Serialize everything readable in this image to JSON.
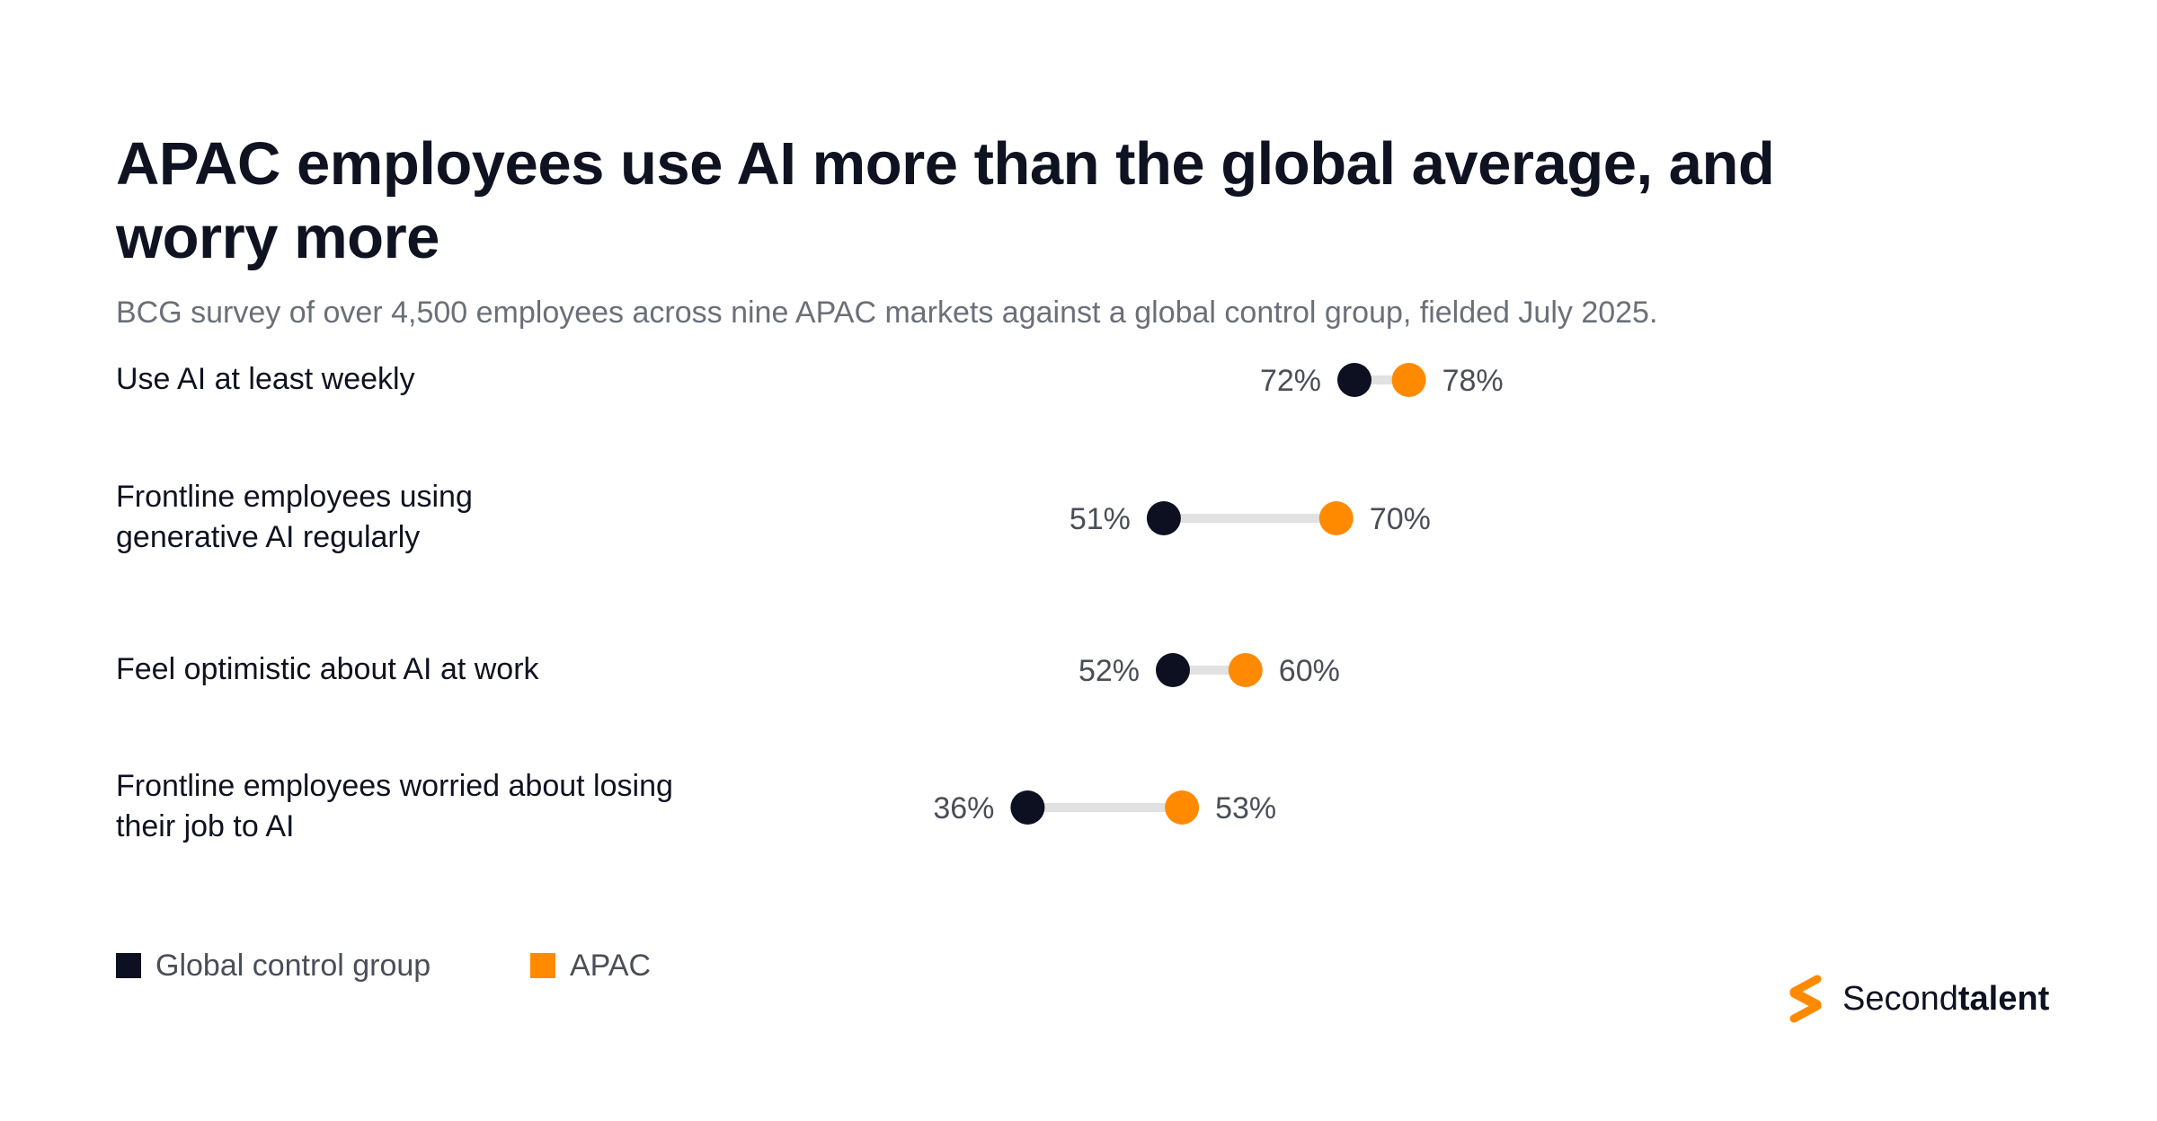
{
  "title": "APAC employees use AI more than the global average, and worry more",
  "subtitle": "BCG survey of over 4,500 employees across nine APAC markets against a global control group, fielded July 2025.",
  "colors": {
    "global": "#0d1020",
    "apac": "#ff8a00",
    "connector": "#e1e1e1",
    "value_label": "#4a4e57"
  },
  "chart_data": {
    "type": "dumbbell",
    "unit": "%",
    "categories": [
      "Use AI at least weekly",
      "Frontline employees using generative AI regularly",
      "Feel optimistic about AI at work",
      "Frontline employees worried about losing their job to AI"
    ],
    "series": [
      {
        "name": "Global control group",
        "values": [
          72,
          51,
          52,
          36
        ]
      },
      {
        "name": "APAC",
        "values": [
          78,
          70,
          60,
          53
        ]
      }
    ],
    "value_labels": {
      "global": [
        "72%",
        "51%",
        "52%",
        "36%"
      ],
      "apac": [
        "78%",
        "70%",
        "60%",
        "53%"
      ]
    },
    "legend_position": "bottom-left",
    "grid": false
  },
  "legend": [
    {
      "label": "Global control group",
      "color": "#0d1020"
    },
    {
      "label": "APAC",
      "color": "#ff8a00"
    }
  ],
  "brand": {
    "name_regular": "Second",
    "name_bold": "talent",
    "icon": "secondtalent-logo-icon",
    "color": "#ff8a00"
  }
}
